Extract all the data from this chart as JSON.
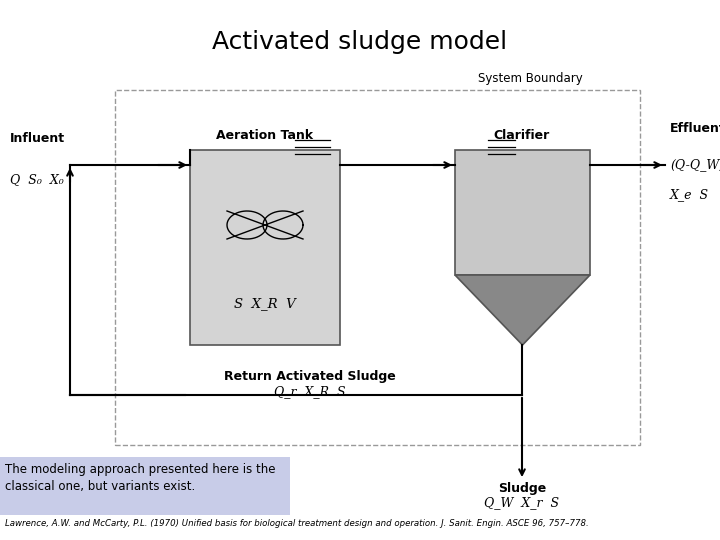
{
  "title": "Activated sludge model",
  "title_fontsize": 18,
  "bg_color": "#ffffff",
  "note_bg": "#c8cce8",
  "note_text": "The modeling approach presented here is the\nclassical one, but variants exist.",
  "citation": "Lawrence, A.W. and McCarty, P.L. (1970) Unified basis for biological treatment design and operation. J. Sanit. Engin. ASCE 96, 757–778.",
  "aeration_tank_color": "#d4d4d4",
  "clarifier_top_color": "#c8c8c8",
  "clarifier_bot_color": "#888888",
  "influent_label": "Influent",
  "influent_sub": "Q  S₀  X₀",
  "effluent_label": "Effluent",
  "effluent_sub1": "(Q-Q_W)",
  "effluent_sub2": "X_e  S",
  "ras_label": "Return Activated Sludge",
  "ras_sub": "Q_r  X_R  S",
  "sludge_label": "Sludge",
  "sludge_sub": "Q_W  X_r  S",
  "tank_vars": "S  X_R  V"
}
